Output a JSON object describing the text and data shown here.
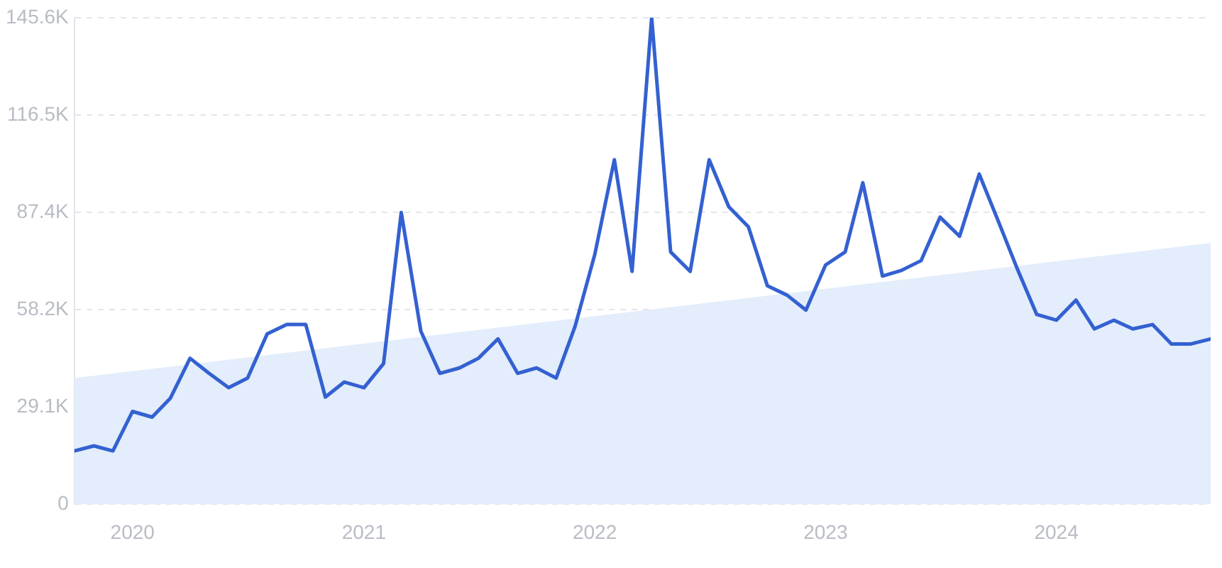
{
  "chart_data": {
    "type": "line",
    "xlim": [
      "2019-10",
      "2024-09"
    ],
    "xticks": [
      "2020",
      "2021",
      "2022",
      "2023",
      "2024"
    ],
    "ylim": [
      0,
      145600
    ],
    "yticks": [
      0,
      {
        "value": 29120,
        "label": "29.1K"
      },
      {
        "value": 58240,
        "label": "58.2K"
      },
      {
        "value": 87360,
        "label": "87.4K"
      },
      {
        "value": 116480,
        "label": "116.5K"
      },
      {
        "value": 145600,
        "label": "145.6K"
      }
    ],
    "grid": "y",
    "legend": false,
    "marker": "none",
    "line_style": "solid",
    "x": [
      "2019-10",
      "2019-11",
      "2019-12",
      "2020-01",
      "2020-02",
      "2020-03",
      "2020-04",
      "2020-05",
      "2020-06",
      "2020-07",
      "2020-08",
      "2020-09",
      "2020-10",
      "2020-11",
      "2020-12",
      "2021-01",
      "2021-02",
      "2021-03",
      "2021-04",
      "2021-05",
      "2021-06",
      "2021-07",
      "2021-08",
      "2021-09",
      "2021-10",
      "2021-11",
      "2021-12",
      "2022-01",
      "2022-02",
      "2022-03",
      "2022-04",
      "2022-05",
      "2022-06",
      "2022-07",
      "2022-08",
      "2022-09",
      "2022-10",
      "2022-11",
      "2022-12",
      "2023-01",
      "2023-02",
      "2023-03",
      "2023-04",
      "2023-05",
      "2023-06",
      "2023-07",
      "2023-08",
      "2023-09",
      "2023-10",
      "2023-11",
      "2023-12",
      "2024-01",
      "2024-02",
      "2024-03",
      "2024-04",
      "2024-05",
      "2024-06",
      "2024-07",
      "2024-08",
      "2024-09"
    ],
    "series": [
      {
        "type": "area",
        "color": "#e3edfb",
        "x": [
          "2019-10",
          "2024-09"
        ],
        "values": [
          37800,
          78200
        ]
      },
      {
        "color": "#3461d1",
        "values": [
          16000,
          17500,
          16000,
          27800,
          26100,
          31800,
          43700,
          39200,
          34900,
          37800,
          51000,
          53800,
          53800,
          32100,
          36600,
          34900,
          42100,
          87300,
          51800,
          39200,
          40800,
          43700,
          49500,
          39200,
          40800,
          37800,
          53300,
          74700,
          103100,
          69700,
          145600,
          75500,
          69700,
          103100,
          89000,
          83000,
          65400,
          62600,
          58100,
          71600,
          75500,
          96200,
          68300,
          70000,
          72900,
          85900,
          80200,
          98800,
          84800,
          70100,
          56800,
          55100,
          61100,
          52500,
          55100,
          52500,
          53800,
          48000,
          48000,
          49500
        ]
      }
    ]
  }
}
